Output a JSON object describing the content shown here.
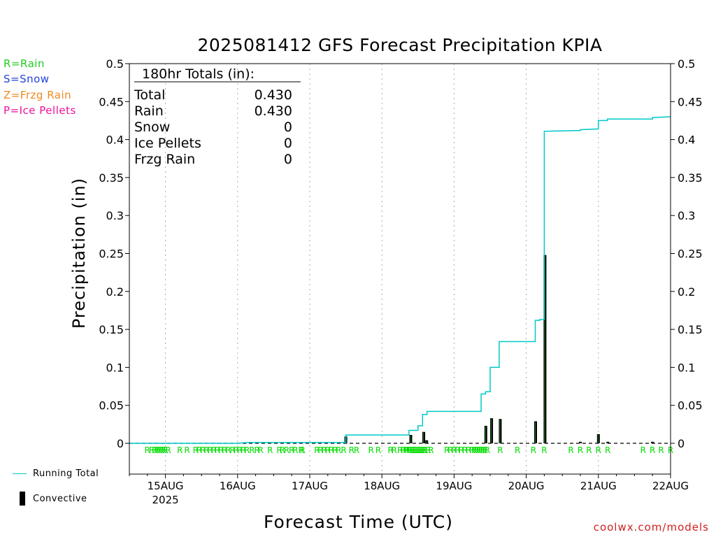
{
  "chart_data": {
    "type": "line",
    "title": "2025081412 GFS Forecast Precipitation KPIA",
    "xlabel": "Forecast Time (UTC)",
    "ylabel": "Precipitation (in)",
    "ylim": [
      0,
      0.5
    ],
    "yticks": [
      "0",
      "0.05",
      "0.1",
      "0.15",
      "0.2",
      "0.25",
      "0.3",
      "0.35",
      "0.4",
      "0.45",
      "0.5"
    ],
    "xlim_days": [
      14.5,
      22.0
    ],
    "xticks": [
      {
        "day": 15,
        "label": "15AUG",
        "sub": "2025"
      },
      {
        "day": 16,
        "label": "16AUG",
        "sub": ""
      },
      {
        "day": 17,
        "label": "17AUG",
        "sub": ""
      },
      {
        "day": 18,
        "label": "18AUG",
        "sub": ""
      },
      {
        "day": 19,
        "label": "19AUG",
        "sub": ""
      },
      {
        "day": 20,
        "label": "20AUG",
        "sub": ""
      },
      {
        "day": 21,
        "label": "21AUG",
        "sub": ""
      },
      {
        "day": 22,
        "label": "22AUG",
        "sub": ""
      }
    ],
    "grid": "vertical dotted at day boundaries",
    "series": [
      {
        "name": "Running Total",
        "color": "#00c8c8",
        "x": [
          14.5,
          16.0,
          16.125,
          17.25,
          17.375,
          17.5,
          17.5,
          18.375,
          18.375,
          18.5,
          18.5,
          18.5625,
          18.5625,
          18.625,
          18.625,
          19.375,
          19.375,
          19.4375,
          19.4375,
          19.5,
          19.5,
          19.5625,
          19.5625,
          19.625,
          19.625,
          20.125,
          20.125,
          20.1875,
          20.1875,
          20.25,
          20.25,
          20.75,
          20.75,
          21.0,
          21.0,
          21.125,
          21.125,
          21.75,
          21.75,
          22.0
        ],
        "y": [
          0,
          0,
          0.001,
          0.001,
          0.001,
          0.001,
          0.011,
          0.011,
          0.017,
          0.017,
          0.023,
          0.023,
          0.038,
          0.038,
          0.042,
          0.042,
          0.065,
          0.065,
          0.068,
          0.068,
          0.1,
          0.1,
          0.1,
          0.1,
          0.134,
          0.134,
          0.162,
          0.162,
          0.163,
          0.163,
          0.411,
          0.412,
          0.413,
          0.414,
          0.425,
          0.425,
          0.427,
          0.427,
          0.429,
          0.43
        ]
      },
      {
        "name": "Convective",
        "color": "#000000",
        "type": "bar",
        "x": [
          17.5,
          18.4,
          18.58,
          18.62,
          19.44,
          19.52,
          19.64,
          20.13,
          20.26,
          20.75,
          21.0,
          21.13,
          21.75
        ],
        "values": [
          0.009,
          0.011,
          0.015,
          0.004,
          0.023,
          0.033,
          0.032,
          0.029,
          0.248,
          0.002,
          0.012,
          0.002,
          0.002
        ]
      }
    ],
    "ptype_markers": {
      "letter": "R",
      "color": "#00dd00",
      "x": [
        14.75,
        14.81,
        14.85,
        14.88,
        14.91,
        14.94,
        14.97,
        15.0,
        15.04,
        15.2,
        15.3,
        15.42,
        15.47,
        15.52,
        15.57,
        15.62,
        15.67,
        15.72,
        15.77,
        15.82,
        15.87,
        15.93,
        15.98,
        16.03,
        16.08,
        16.13,
        16.2,
        16.27,
        16.32,
        16.45,
        16.58,
        16.62,
        16.68,
        16.75,
        16.8,
        16.88,
        16.9,
        17.1,
        17.15,
        17.2,
        17.25,
        17.3,
        17.35,
        17.4,
        17.47,
        17.58,
        17.65,
        17.85,
        17.95,
        18.12,
        18.17,
        18.25,
        18.3,
        18.33,
        18.35,
        18.38,
        18.4,
        18.42,
        18.44,
        18.46,
        18.48,
        18.5,
        18.52,
        18.54,
        18.56,
        18.58,
        18.6,
        18.64,
        18.68,
        18.9,
        18.95,
        19.0,
        19.05,
        19.1,
        19.15,
        19.2,
        19.25,
        19.28,
        19.31,
        19.34,
        19.37,
        19.4,
        19.43,
        19.46,
        19.64,
        19.88,
        20.1,
        20.25,
        20.62,
        20.75,
        20.87,
        21.0,
        21.13,
        21.62,
        21.75,
        21.87,
        22.0
      ]
    },
    "totals_box": {
      "heading": "180hr Totals (in):",
      "rows": [
        {
          "label": "Total",
          "value": "0.430"
        },
        {
          "label": "Rain",
          "value": "0.430"
        },
        {
          "label": "Snow",
          "value": "0"
        },
        {
          "label": "Ice Pellets",
          "value": "0"
        },
        {
          "label": "Frzg Rain",
          "value": "0"
        }
      ]
    },
    "ptype_key": [
      {
        "text": "R=Rain",
        "color": "#22cc22"
      },
      {
        "text": "S=Snow",
        "color": "#2244dd"
      },
      {
        "text": "Z=Frzg Rain",
        "color": "#ee8822"
      },
      {
        "text": "P=Ice Pellets",
        "color": "#ee1199"
      }
    ],
    "legend": [
      {
        "label": "Running Total",
        "color": "#00c8c8"
      },
      {
        "label": "Convective",
        "color": "#000000"
      }
    ],
    "credit": "coolwx.com/models"
  }
}
